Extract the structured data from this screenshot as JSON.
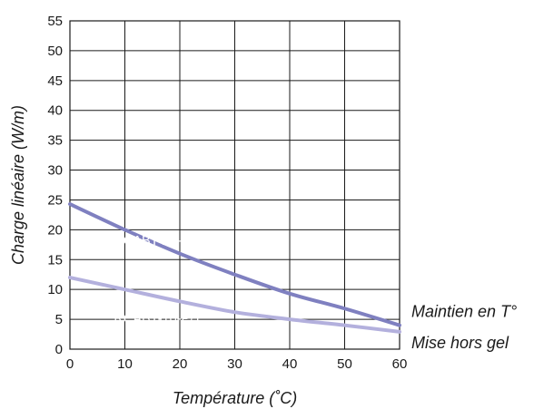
{
  "chart_data": {
    "type": "line",
    "title": "",
    "xlabel": "Température (˚C)",
    "ylabel": "Charge linéaire (W/m)",
    "xlim": [
      0,
      60
    ],
    "ylim": [
      0,
      55
    ],
    "x_ticks": [
      0,
      10,
      20,
      30,
      40,
      50,
      60
    ],
    "y_ticks": [
      0,
      5,
      10,
      15,
      20,
      25,
      30,
      35,
      40,
      45,
      50,
      55
    ],
    "grid": true,
    "series": [
      {
        "name": "RCABT-20-P/T",
        "side_label": "Maintien en T°",
        "color": "#7f80c0",
        "x": [
          0,
          10,
          20,
          30,
          40,
          50,
          60
        ],
        "y": [
          24.3,
          20,
          16,
          12.5,
          9.3,
          6.8,
          4
        ]
      },
      {
        "name": "RCABT-10-P/T",
        "side_label": "Mise hors gel",
        "color": "#b3b0dd",
        "x": [
          0,
          10,
          20,
          30,
          40,
          50,
          60
        ],
        "y": [
          12,
          10,
          8,
          6.2,
          5,
          4,
          2.9
        ]
      }
    ]
  }
}
